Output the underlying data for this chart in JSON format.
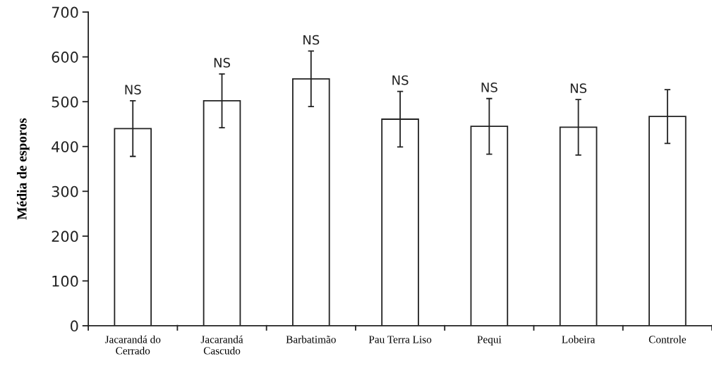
{
  "chart_data": {
    "type": "bar",
    "ylabel": "Média de esporos",
    "categories": [
      "Jacarandá do\nCerrado",
      "Jacarandá\nCascudo",
      "Barbatimão",
      "Pau Terra Liso",
      "Pequi",
      "Lobeira",
      "Controle"
    ],
    "values": [
      440,
      502,
      551,
      461,
      445,
      443,
      467
    ],
    "errors": [
      62,
      60,
      62,
      62,
      62,
      62,
      60
    ],
    "color": "#ffffff",
    "ylim": [
      0,
      700
    ],
    "yticks": [
      0,
      100,
      200,
      300,
      400,
      500,
      600,
      700
    ],
    "grid": false,
    "annotations": [
      {
        "text": "NS",
        "x": "Jacarandá do\nCerrado",
        "y": 502
      },
      {
        "text": "NS",
        "x": "Jacarandá\nCascudo",
        "y": 562
      },
      {
        "text": "NS",
        "x": "Barbatimão",
        "y": 613
      },
      {
        "text": "NS",
        "x": "Pau Terra Liso",
        "y": 523
      },
      {
        "text": "NS",
        "x": "Pequi",
        "y": 507
      },
      {
        "text": "NS",
        "x": "Lobeira",
        "y": 505
      }
    ]
  }
}
